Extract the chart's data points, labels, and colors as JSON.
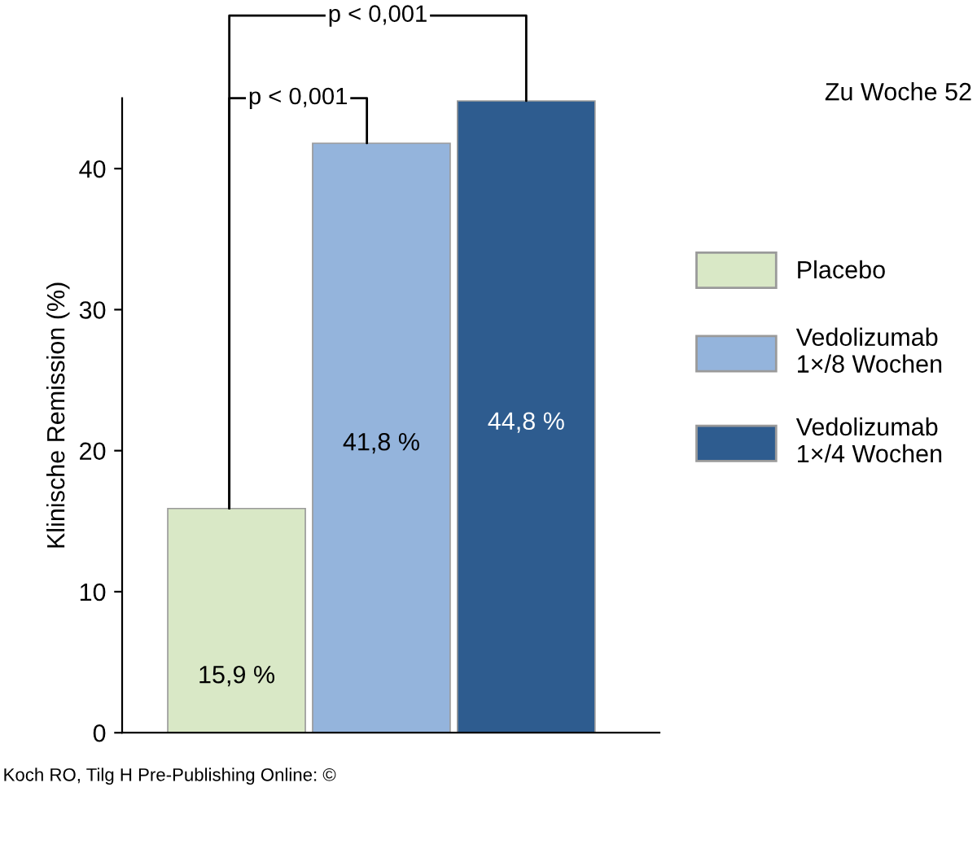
{
  "chart_data": {
    "type": "bar",
    "title": "Zu Woche 52",
    "ylabel": "Klinische Remission (%)",
    "categories": [
      null,
      null,
      null
    ],
    "series": [
      {
        "name": "Placebo",
        "color": "#d9e8c6",
        "values": [
          15.9,
          null,
          null
        ],
        "value_labels": [
          "15,9 %",
          null,
          null
        ]
      },
      {
        "name": "Vedolizumab\n1×/8 Wochen",
        "color": "#94b4dc",
        "values": [
          null,
          41.8,
          null
        ],
        "value_labels": [
          null,
          "41,8 %",
          null
        ]
      },
      {
        "name": "Vedolizumab\n1×/4 Wochen",
        "color": "#2e5c8f",
        "values": [
          null,
          null,
          44.8
        ],
        "value_labels": [
          null,
          null,
          "44,8 %"
        ]
      }
    ],
    "ylim": [
      0,
      45
    ],
    "yticks": [
      0,
      10,
      20,
      30,
      40
    ],
    "tick_labels": "y",
    "grid": false,
    "legend": "right",
    "annotations": [
      "p < 0,001",
      "p < 0,001",
      "Koch RO, Tilg H Pre-Publishing Online: ©"
    ]
  }
}
